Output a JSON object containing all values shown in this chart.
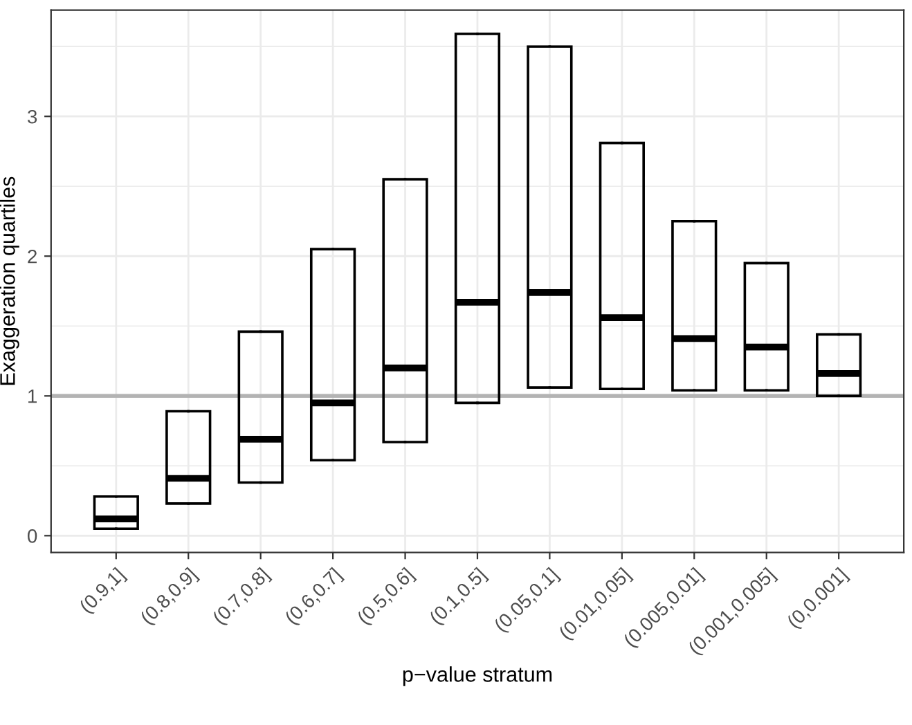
{
  "chart_data": {
    "type": "box",
    "xlabel": "p−value stratum",
    "ylabel": "Exaggeration quartiles",
    "categories": [
      "(0.9,1]",
      "(0.8,0.9]",
      "(0.7,0.8]",
      "(0.6,0.7]",
      "(0.5,0.6]",
      "(0.1,0.5]",
      "(0.05,0.1]",
      "(0.01,0.05]",
      "(0.005,0.01]",
      "(0.001,0.005]",
      "(0,0.001]"
    ],
    "boxes": [
      {
        "low": 0.05,
        "q1": 0.05,
        "median": 0.12,
        "q3": 0.28,
        "high": 0.28
      },
      {
        "low": 0.23,
        "q1": 0.23,
        "median": 0.41,
        "q3": 0.89,
        "high": 0.89
      },
      {
        "low": 0.38,
        "q1": 0.38,
        "median": 0.69,
        "q3": 1.46,
        "high": 1.46
      },
      {
        "low": 0.54,
        "q1": 0.54,
        "median": 0.95,
        "q3": 2.05,
        "high": 2.05
      },
      {
        "low": 0.67,
        "q1": 0.67,
        "median": 1.2,
        "q3": 2.55,
        "high": 2.55
      },
      {
        "low": 0.95,
        "q1": 0.95,
        "median": 1.67,
        "q3": 3.59,
        "high": 3.59
      },
      {
        "low": 1.06,
        "q1": 1.06,
        "median": 1.74,
        "q3": 3.5,
        "high": 3.5
      },
      {
        "low": 1.05,
        "q1": 1.05,
        "median": 1.56,
        "q3": 2.81,
        "high": 2.81
      },
      {
        "low": 1.04,
        "q1": 1.04,
        "median": 1.41,
        "q3": 2.25,
        "high": 2.25
      },
      {
        "low": 1.04,
        "q1": 1.04,
        "median": 1.35,
        "q3": 1.95,
        "high": 1.95
      },
      {
        "low": 1.0,
        "q1": 1.0,
        "median": 1.16,
        "q3": 1.44,
        "high": 1.44
      }
    ],
    "ylim": [
      -0.12,
      3.76
    ],
    "yticks": [
      0,
      1,
      2,
      3
    ],
    "ref_lines": [
      {
        "axis": "y",
        "value": 1,
        "color": "#b3b3b3"
      }
    ],
    "grid": true
  }
}
